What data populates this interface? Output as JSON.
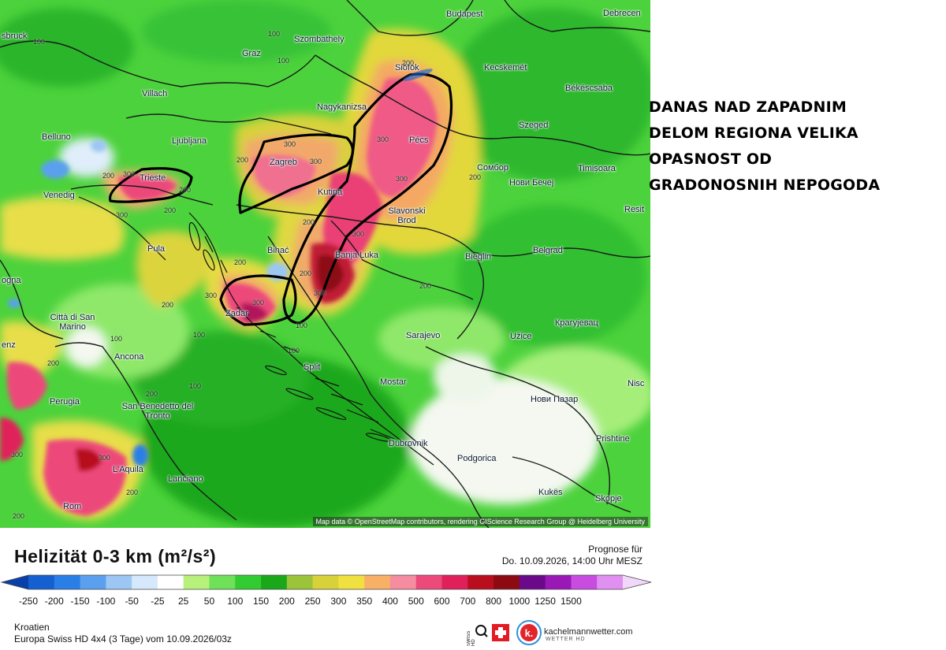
{
  "warning_text": [
    "DANAS NAD ZAPADNIM",
    "DELOM REGIONA VELIKA",
    "OPASNOST OD",
    "GRADONOSNIH NEPOGODA"
  ],
  "map": {
    "attribution": "Map data © OpenStreetMap contributors, rendering GIScience Research Group @ Heidelberg University",
    "cities": [
      "Budapest",
      "Debrecen",
      "Szombathely",
      "Graz",
      "Siófok",
      "Kecskemét",
      "Békéscsaba",
      "Nagykanizsa",
      "Villach",
      "Szeged",
      "Belluno",
      "Ljubljana",
      "Pécs",
      "Zagreb",
      "Trieste",
      "Timișoara",
      "Venedig",
      "Сомбор",
      "Нови Бечеј",
      "Kutina",
      "Slavonski Brod",
      "Resit",
      "Pula",
      "Bihać",
      "Banja Luka",
      "Bieglin",
      "Belgrad",
      "Città di San Marino",
      "Zadar",
      "Sarajevo",
      "Крагујевац",
      "Užice",
      "Ancona",
      "Split",
      "Mostar",
      "Nisc",
      "Perugia",
      "San Benedetto del Tronto",
      "Нови Пазар",
      "Dubrovnik",
      "Podgorica",
      "Prishtine",
      "L'Aquila",
      "Lanciano",
      "Kukës",
      "Skopje",
      "Rom",
      "sbruck",
      "ogna",
      "enz"
    ],
    "isoline_labels": [
      "100",
      "200",
      "300"
    ]
  },
  "legend": {
    "title": "Helizität 0-3 km (m²/s²)",
    "forecast_label": "Prognose für",
    "forecast_date": "Do. 10.09.2026, 14:00 Uhr MESZ",
    "ticks": [
      "-250",
      "-200",
      "-150",
      "-100",
      "-50",
      "-25",
      "25",
      "50",
      "100",
      "150",
      "200",
      "250",
      "300",
      "350",
      "400",
      "500",
      "600",
      "700",
      "800",
      "1000",
      "1250",
      "1500"
    ],
    "colors": [
      "#0a3fa8",
      "#1460d0",
      "#2a7fe6",
      "#5aa0ee",
      "#9cc6f4",
      "#d6e8fb",
      "#ffffff",
      "#b8f07c",
      "#6ee05a",
      "#32cc32",
      "#1aa81a",
      "#9cc43a",
      "#d8d23a",
      "#f0e040",
      "#f7b066",
      "#f58ca0",
      "#ec4a7a",
      "#e0205a",
      "#b80e1e",
      "#8c0a12",
      "#6a0a8a",
      "#9a18b6",
      "#c84ce0",
      "#e090f0",
      "#f2d8f8"
    ],
    "region": "Kroatien",
    "model": "Europa Swiss HD 4x4 (3 Tage) vom  10.09.2026/03z",
    "brand": "kachelmannwetter.com",
    "brand_sub": "WETTER HD",
    "swiss_hd": "SWISS HD"
  }
}
